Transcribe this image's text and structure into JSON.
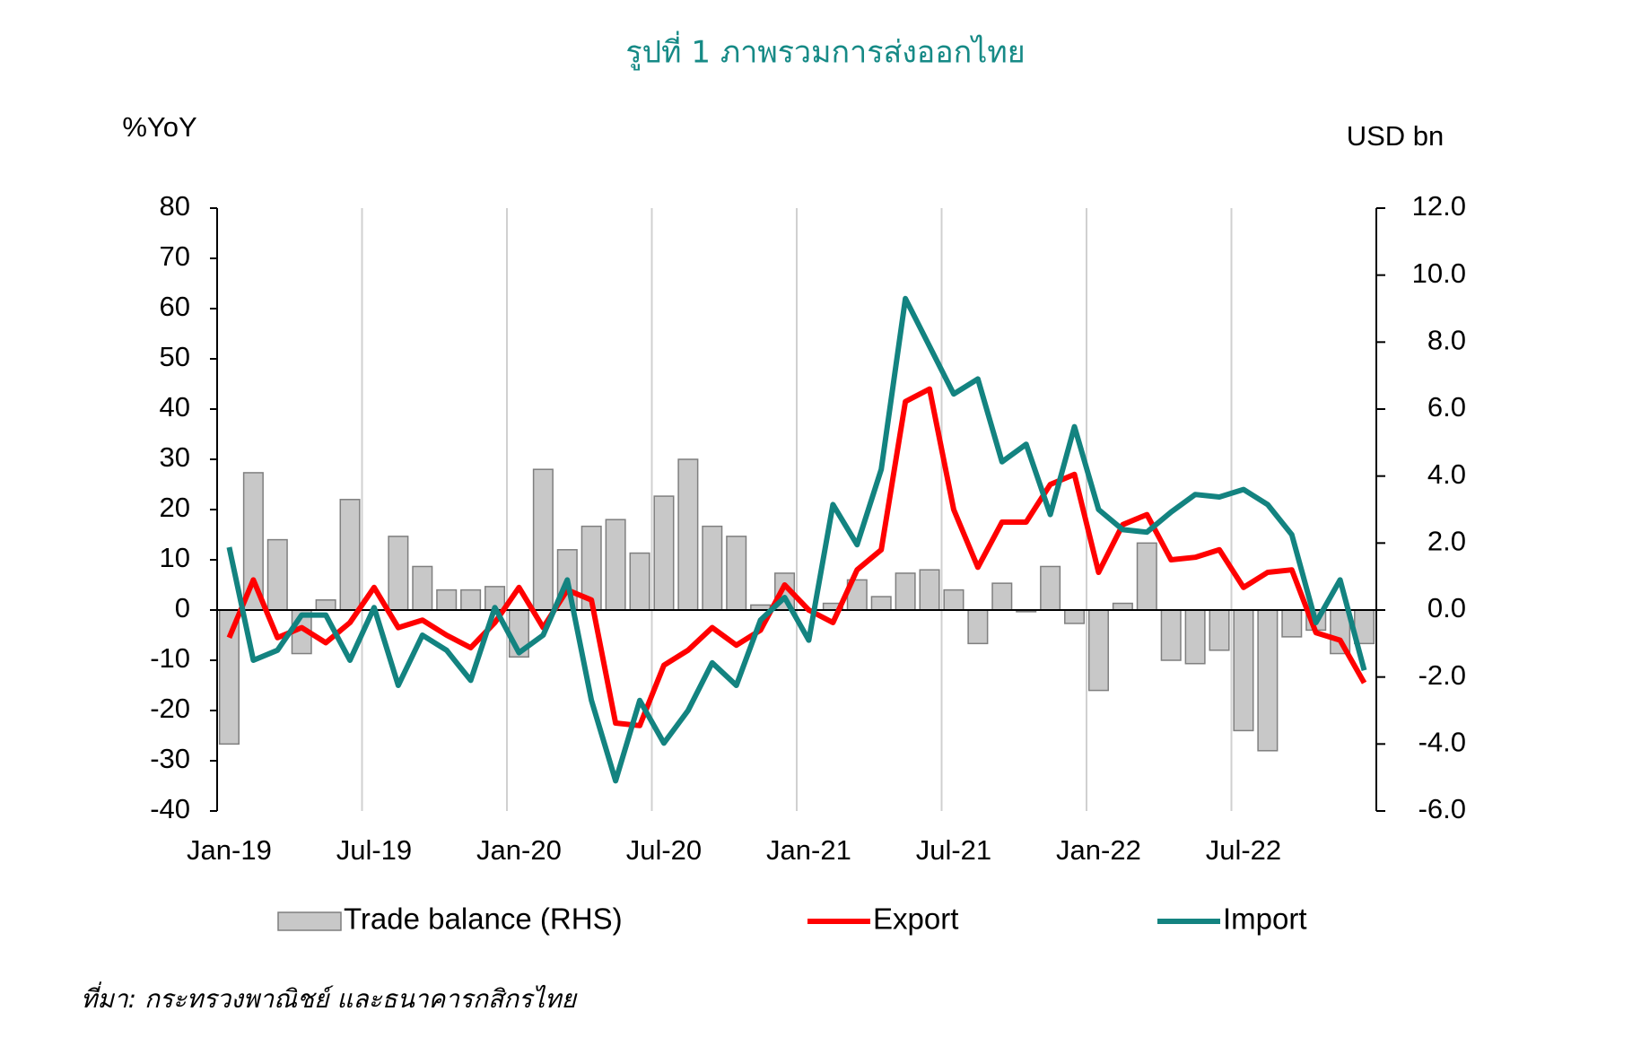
{
  "chart_data": {
    "type": "combo",
    "title": "รูปที่ 1 ภาพรวมการส่งออกไทย",
    "ylabel": "%YoY",
    "y2label": "USD bn",
    "source": "ที่มา: กระทรวงพาณิชย์ และธนาคารกสิกรไทย",
    "categories": [
      "Jan-19",
      null,
      null,
      null,
      null,
      null,
      "Jul-19",
      null,
      null,
      null,
      null,
      null,
      "Jan-20",
      null,
      null,
      null,
      null,
      null,
      "Jul-20",
      null,
      null,
      null,
      null,
      null,
      "Jan-21",
      null,
      null,
      null,
      null,
      null,
      "Jul-21",
      null,
      null,
      null,
      null,
      null,
      "Jan-22",
      null,
      null,
      null,
      null,
      null,
      "Jul-22",
      null,
      null,
      null,
      null,
      null
    ],
    "ylim": [
      -40,
      80
    ],
    "yticks": [
      -40,
      -30,
      -20,
      -10,
      0,
      10,
      20,
      30,
      40,
      50,
      60,
      70,
      80
    ],
    "y2lim": [
      -6,
      12
    ],
    "y2ticks": [
      {
        "value": -6,
        "label": "-6.0"
      },
      {
        "value": -4,
        "label": "-4.0"
      },
      {
        "value": -2,
        "label": "-2.0"
      },
      {
        "value": 0,
        "label": "0.0"
      },
      {
        "value": 2,
        "label": "2.0"
      },
      {
        "value": 4,
        "label": "4.0"
      },
      {
        "value": 6,
        "label": "6.0"
      },
      {
        "value": 8,
        "label": "8.0"
      },
      {
        "value": 10,
        "label": "10.0"
      },
      {
        "value": 12,
        "label": "12.0"
      }
    ],
    "grid": true,
    "series": [
      {
        "name": "Trade balance (RHS)",
        "type": "bar",
        "axis": "y2",
        "color": "#c8c8c8",
        "values": [
          -4.0,
          4.1,
          2.1,
          -1.3,
          0.3,
          3.3,
          0,
          2.2,
          1.3,
          0.6,
          0.6,
          0.7,
          -1.4,
          4.2,
          1.8,
          2.5,
          2.7,
          1.7,
          3.4,
          4.5,
          2.5,
          2.2,
          0.15,
          1.1,
          0,
          0.2,
          0.9,
          0.4,
          1.1,
          1.2,
          0.6,
          -1.0,
          0.8,
          -0.05,
          1.3,
          -0.4,
          -2.4,
          0.2,
          2.0,
          -1.5,
          -1.6,
          -1.2,
          -3.6,
          -4.2,
          -0.8,
          -0.6,
          -1.3,
          -1.0
        ]
      },
      {
        "name": "Export",
        "type": "line",
        "color": "#ff0000",
        "values": [
          -5.5,
          6,
          -5.5,
          -3.5,
          -6.5,
          -2.5,
          4.5,
          -3.5,
          -2,
          -5,
          -7.5,
          -2.5,
          4.5,
          -3.5,
          4,
          2,
          -22.5,
          -23,
          -11,
          -8,
          -3.5,
          -7,
          -4,
          5,
          0,
          -2.5,
          8,
          12,
          41.5,
          44,
          20,
          8.5,
          17.5,
          17.5,
          25,
          27,
          7.5,
          17,
          19,
          10,
          10.5,
          12,
          4.5,
          7.5,
          8,
          -4.5,
          -6,
          -14.5
        ]
      },
      {
        "name": "Import",
        "type": "line",
        "color": "#138380",
        "values": [
          12.5,
          -10,
          -8,
          -1,
          -1,
          -10,
          0.5,
          -15,
          -5,
          -8,
          -14,
          0.5,
          -8.5,
          -5,
          6,
          -18,
          -34,
          -18,
          -26.5,
          -20,
          -10.5,
          -15,
          -2,
          2.5,
          -6,
          21,
          13,
          28,
          62,
          52.5,
          43,
          46,
          29.5,
          33,
          19,
          36.5,
          20,
          16,
          15.5,
          19.5,
          23,
          22.5,
          24,
          21,
          15,
          -2.5,
          6,
          -12
        ]
      }
    ]
  }
}
